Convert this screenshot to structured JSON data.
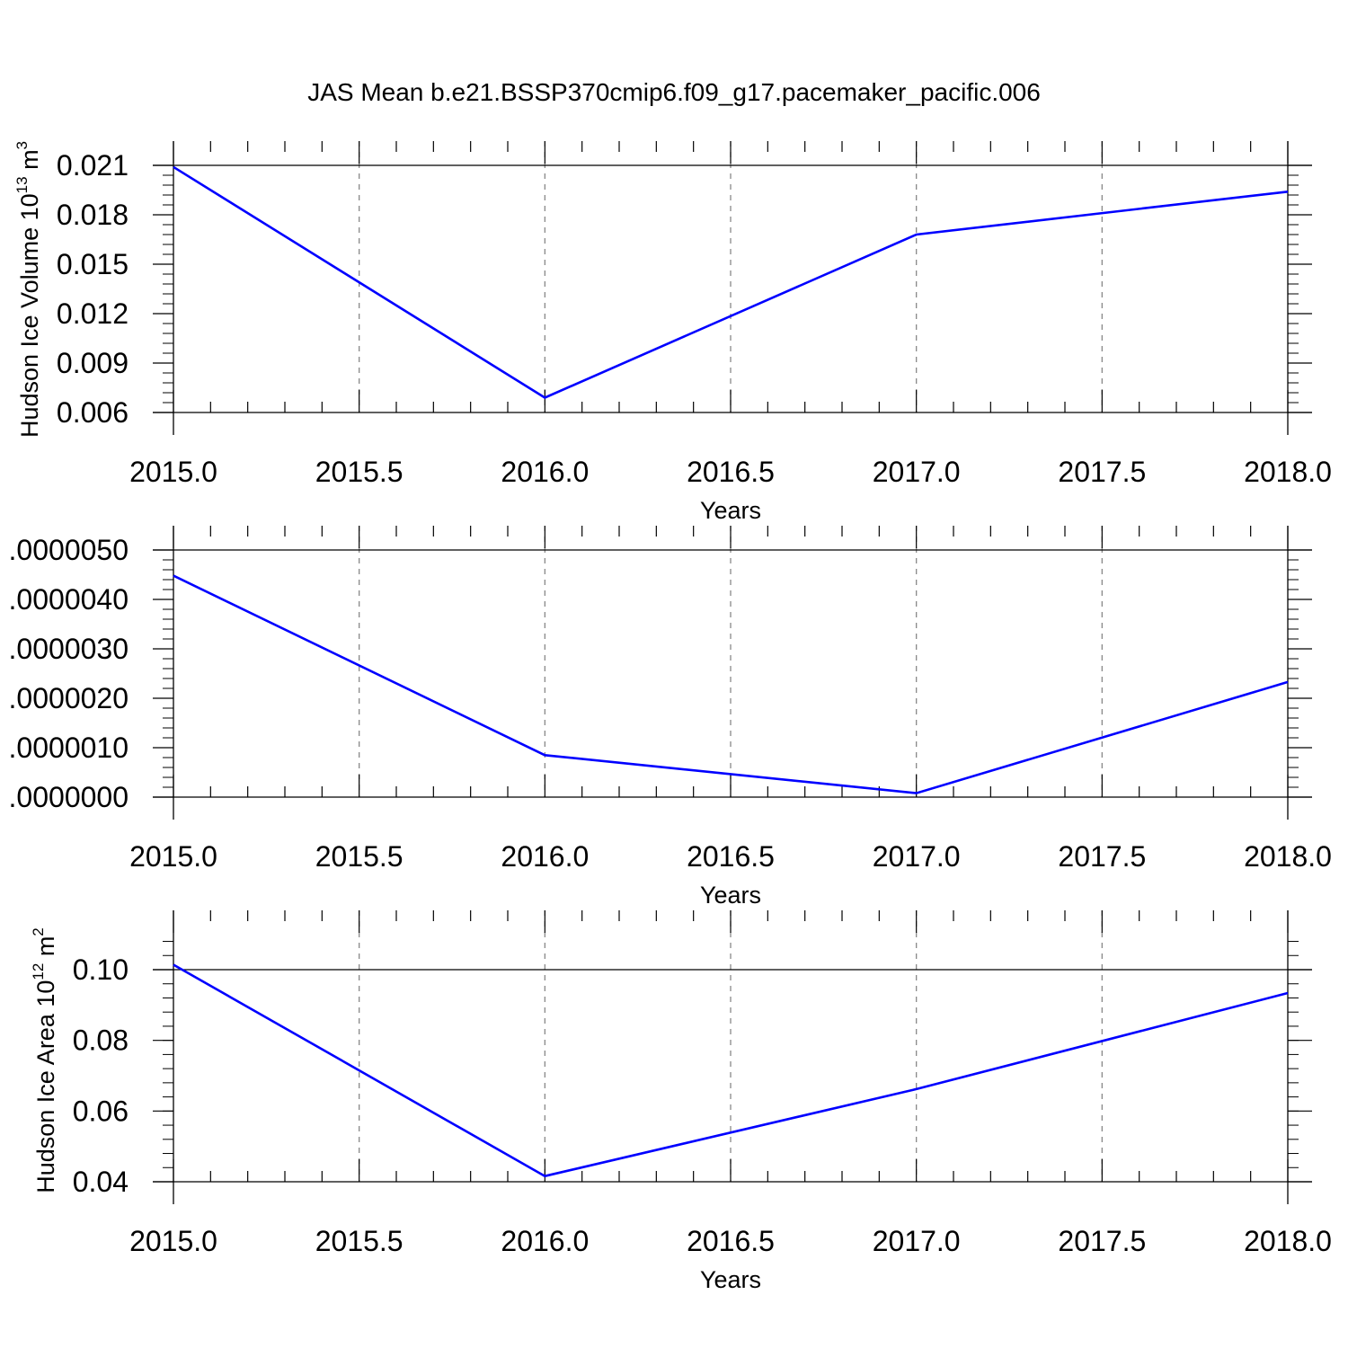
{
  "title": "JAS Mean b.e21.BSSP370cmip6.f09_g17.pacemaker_pacific.006",
  "colors": {
    "line": "#0000ff",
    "axis": "#000000",
    "grid": "#888888"
  },
  "chart_data": [
    {
      "type": "line",
      "title": "",
      "xlabel": "Years",
      "ylabel": "Hudson Ice Volume 10",
      "ylabel_sup": "13",
      "ylabel_unit": " m",
      "ylabel_unit_sup": "3",
      "xlim": [
        2015.0,
        2018.0
      ],
      "ylim": [
        0.006,
        0.021
      ],
      "xticks": [
        "2015.0",
        "2015.5",
        "2016.0",
        "2016.5",
        "2017.0",
        "2017.5",
        "2018.0"
      ],
      "yticks": [
        "0.006",
        "0.009",
        "0.012",
        "0.015",
        "0.018",
        "0.021"
      ],
      "grid": "vertical dashed",
      "series": [
        {
          "x": [
            2015,
            2016,
            2017,
            2018
          ],
          "y": [
            0.0209,
            0.0069,
            0.0168,
            0.0194
          ]
        }
      ]
    },
    {
      "type": "line",
      "title": "",
      "xlabel": "Years",
      "ylabel": "",
      "xlim": [
        2015.0,
        2018.0
      ],
      "ylim": [
        0.0,
        5e-06
      ],
      "xticks": [
        "2015.0",
        "2015.5",
        "2016.0",
        "2016.5",
        "2017.0",
        "2017.5",
        "2018.0"
      ],
      "yticks": [
        ".0000000",
        ".0000010",
        ".0000020",
        ".0000030",
        ".0000040",
        ".0000050"
      ],
      "grid": "vertical dashed",
      "series": [
        {
          "x": [
            2015,
            2016,
            2017,
            2018
          ],
          "y": [
            4.48e-06,
            8.5e-07,
            8e-08,
            2.33e-06
          ]
        }
      ]
    },
    {
      "type": "line",
      "title": "",
      "xlabel": "Years",
      "ylabel": "Hudson Ice Area 10",
      "ylabel_sup": "12",
      "ylabel_unit": " m",
      "ylabel_unit_sup": "2",
      "xlim": [
        2015.0,
        2018.0
      ],
      "ylim": [
        0.04,
        0.11
      ],
      "xticks": [
        "2015.0",
        "2015.5",
        "2016.0",
        "2016.5",
        "2017.0",
        "2017.5",
        "2018.0"
      ],
      "yticks": [
        "0.04",
        "0.06",
        "0.08",
        "0.10"
      ],
      "grid": "vertical dashed",
      "series": [
        {
          "x": [
            2015,
            2016,
            2017,
            2018
          ],
          "y": [
            0.1014,
            0.0416,
            0.0662,
            0.0934
          ]
        }
      ]
    }
  ]
}
